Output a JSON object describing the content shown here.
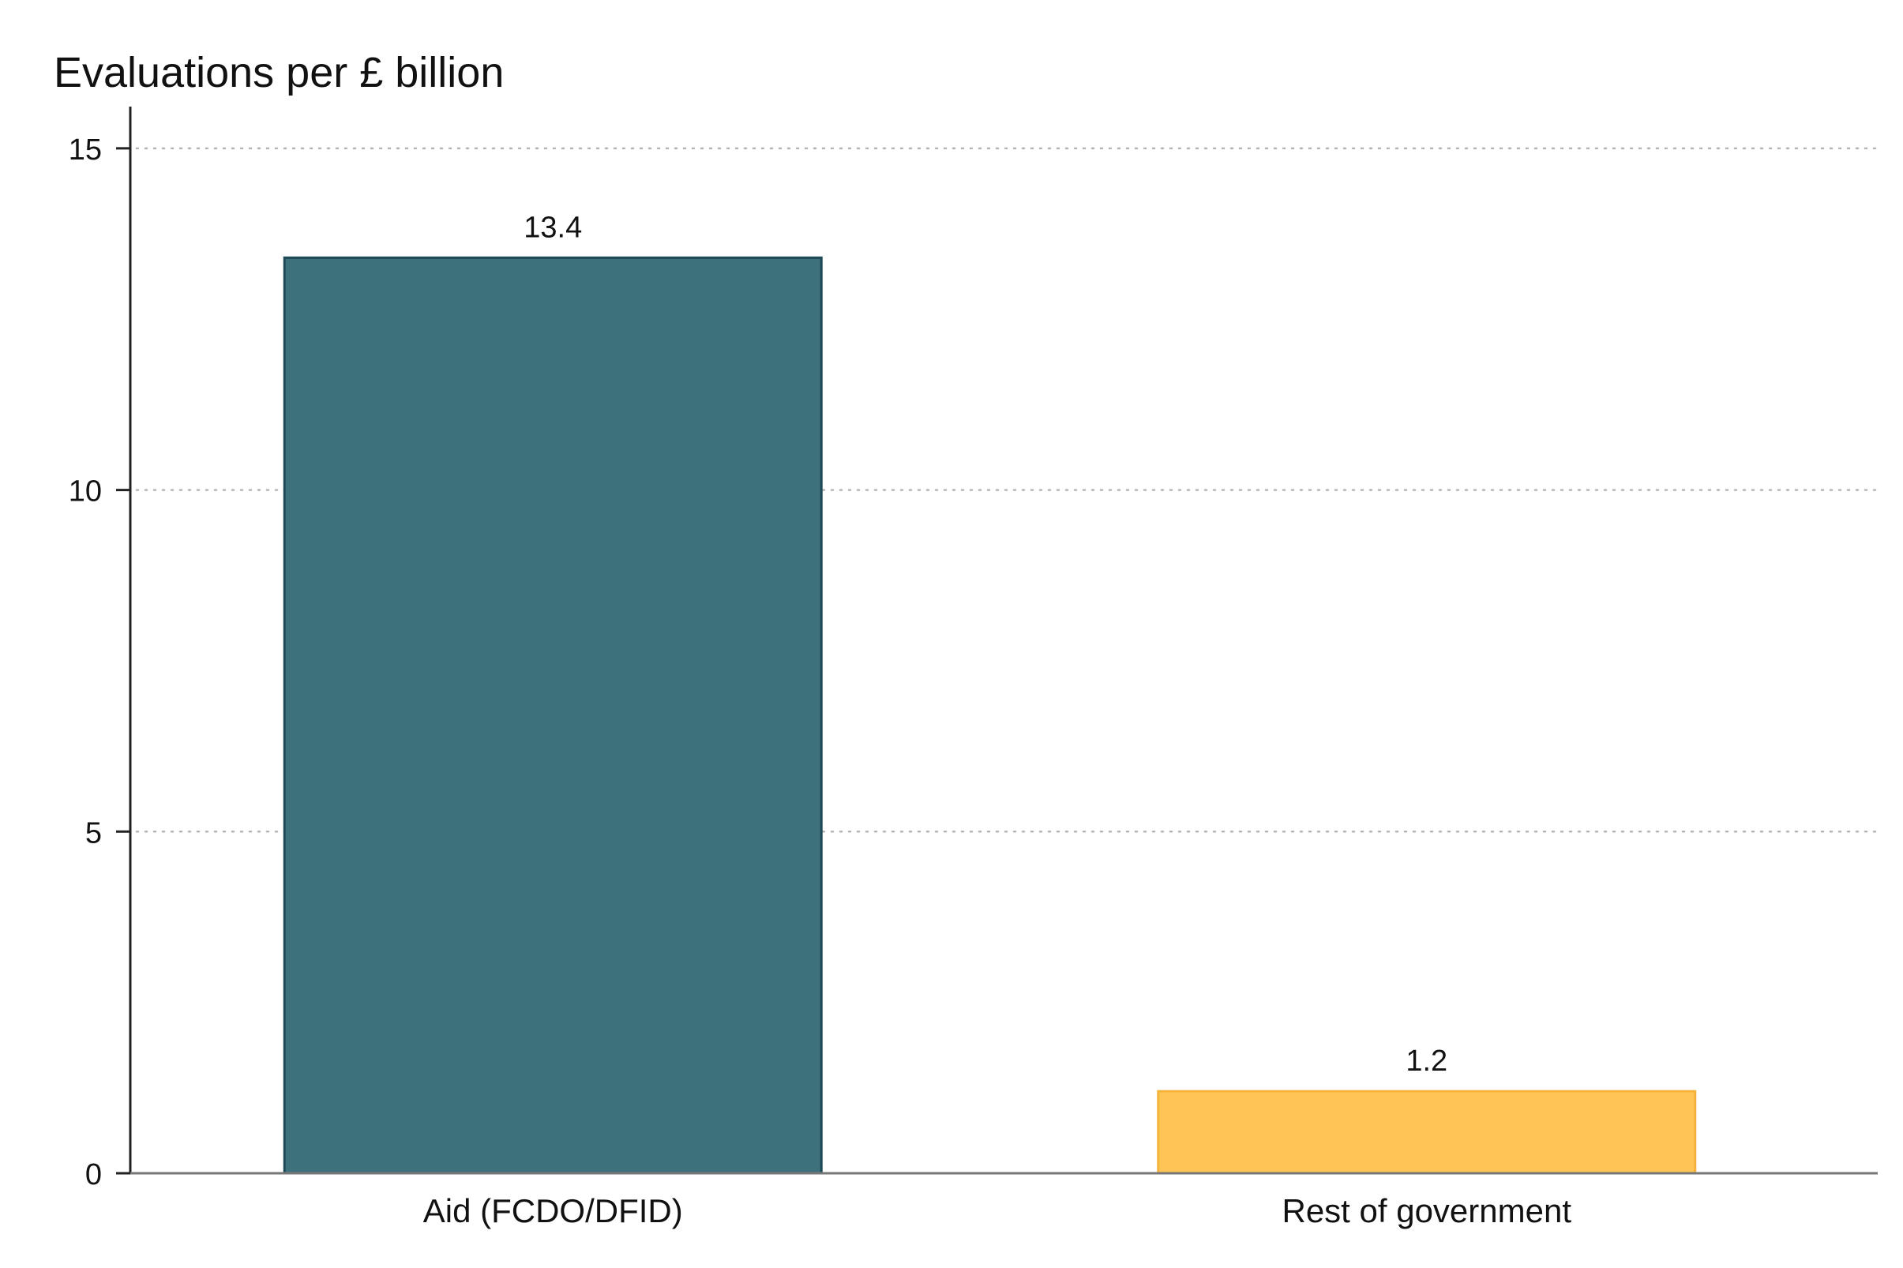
{
  "chart_data": {
    "type": "bar",
    "title": "",
    "xlabel": "",
    "ylabel": "Evaluations per £ billion",
    "categories": [
      "Aid (FCDO/DFID)",
      "Rest of government"
    ],
    "values": [
      13.4,
      1.2
    ],
    "value_labels": [
      "13.4",
      "1.2"
    ],
    "colors": [
      "#3d717c",
      "#ffc455"
    ],
    "edge_colors": [
      "#1e4a56",
      "#f5b33d"
    ],
    "ylim": [
      0,
      15.6
    ],
    "yticks": [
      0,
      5,
      10,
      15
    ],
    "grid": true,
    "grid_style": "dotted",
    "legend": "none"
  }
}
